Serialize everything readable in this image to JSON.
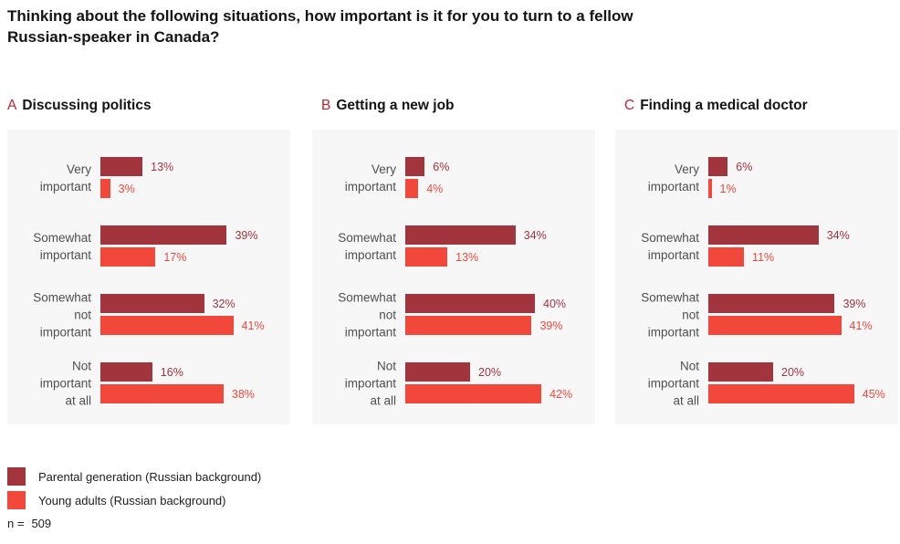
{
  "title_lines": [
    "Thinking about the following situations, how important is it for you to turn to a fellow",
    "Russian-speaker in Canada?"
  ],
  "colors": {
    "parental": "#a2343e",
    "young": "#f1483b",
    "panel_letter": "#bf2430",
    "panel_background": "#f7f7f7"
  },
  "chart_data": [
    {
      "type": "bar",
      "orientation": "horizontal",
      "panel_letter": "A",
      "title": "Discussing politics",
      "categories": [
        "Very important",
        "Somewhat important",
        "Somewhat not important",
        "Not important at all"
      ],
      "category_lines": [
        [
          "Very",
          "important"
        ],
        [
          "Somewhat",
          "important"
        ],
        [
          "Somewhat",
          "not",
          "important"
        ],
        [
          "Not",
          "important",
          "at all"
        ]
      ],
      "series": [
        {
          "name": "Parental generation (Russian background)",
          "color": "#a2343e",
          "values": [
            13,
            39,
            32,
            16
          ]
        },
        {
          "name": "Young adults (Russian background)",
          "color": "#f1483b",
          "values": [
            3,
            17,
            41,
            38
          ]
        }
      ],
      "value_suffix": "%",
      "xlim": [
        0,
        50
      ],
      "grid": false,
      "legend_position": "bottom-left"
    },
    {
      "type": "bar",
      "orientation": "horizontal",
      "panel_letter": "B",
      "title": "Getting a new job",
      "categories": [
        "Very important",
        "Somewhat important",
        "Somewhat not important",
        "Not important at all"
      ],
      "category_lines": [
        [
          "Very",
          "important"
        ],
        [
          "Somewhat",
          "important"
        ],
        [
          "Somewhat",
          "not",
          "important"
        ],
        [
          "Not",
          "important",
          "at all"
        ]
      ],
      "series": [
        {
          "name": "Parental generation (Russian background)",
          "color": "#a2343e",
          "values": [
            6,
            34,
            40,
            20
          ]
        },
        {
          "name": "Young adults (Russian background)",
          "color": "#f1483b",
          "values": [
            4,
            13,
            39,
            42
          ]
        }
      ],
      "value_suffix": "%",
      "xlim": [
        0,
        50
      ],
      "grid": false,
      "legend_position": "bottom-left"
    },
    {
      "type": "bar",
      "orientation": "horizontal",
      "panel_letter": "C",
      "title": "Finding a medical doctor",
      "categories": [
        "Very important",
        "Somewhat important",
        "Somewhat not important",
        "Not important at all"
      ],
      "category_lines": [
        [
          "Very",
          "important"
        ],
        [
          "Somewhat",
          "important"
        ],
        [
          "Somewhat",
          "not",
          "important"
        ],
        [
          "Not",
          "important",
          "at all"
        ]
      ],
      "series": [
        {
          "name": "Parental generation (Russian background)",
          "color": "#a2343e",
          "values": [
            6,
            34,
            39,
            20
          ]
        },
        {
          "name": "Young adults (Russian background)",
          "color": "#f1483b",
          "values": [
            1,
            11,
            41,
            45
          ]
        }
      ],
      "value_suffix": "%",
      "xlim": [
        0,
        50
      ],
      "grid": false,
      "legend_position": "bottom-left"
    }
  ],
  "legend": {
    "items": [
      {
        "label": "Parental generation (Russian background)",
        "color": "#a2343e"
      },
      {
        "label": "Young adults (Russian background)",
        "color": "#f1483b"
      }
    ]
  },
  "footnote": {
    "prefix": "n =",
    "value": "509"
  }
}
